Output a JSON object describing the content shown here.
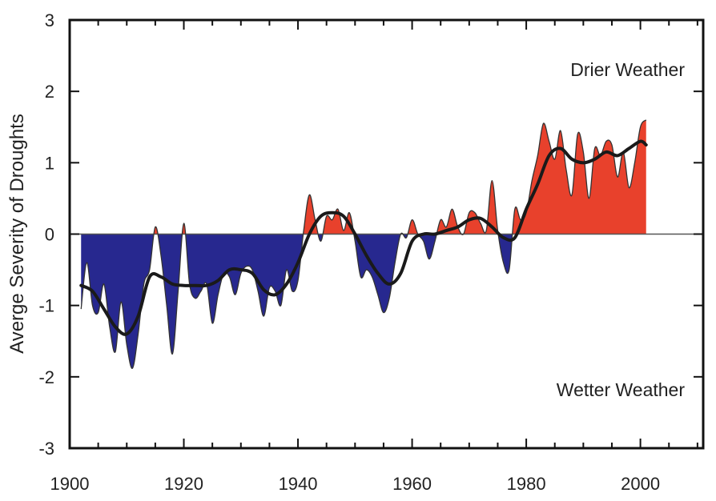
{
  "chart_data": {
    "type": "area",
    "title": "",
    "ylabel": "Averge Severity of Droughts",
    "xlabel": "",
    "xlim": [
      1900,
      2011
    ],
    "ylim": [
      -3,
      3
    ],
    "xticks": [
      1900,
      1920,
      1940,
      1960,
      1980,
      2000
    ],
    "yticks": [
      -3,
      -2,
      -1,
      0,
      1,
      2,
      3
    ],
    "grid": false,
    "annotations": {
      "upper": "Drier Weather",
      "lower": "Wetter Weather"
    },
    "colors": {
      "positive_fill": "#e8412c",
      "negative_fill": "#27288f",
      "smooth_line": "#1a1a1a",
      "axis": "#111111"
    },
    "series": [
      {
        "x": [
          1902,
          1903,
          1904,
          1905,
          1906,
          1907,
          1908,
          1909,
          1910,
          1911,
          1912,
          1913,
          1914,
          1915,
          1916,
          1917,
          1918,
          1919,
          1920,
          1921,
          1922,
          1923,
          1924,
          1925,
          1926,
          1927,
          1928,
          1929,
          1930,
          1931,
          1932,
          1933,
          1934,
          1935,
          1936,
          1937,
          1938,
          1939,
          1940,
          1941,
          1942,
          1943,
          1944,
          1945,
          1946,
          1947,
          1948,
          1949,
          1950,
          1951,
          1952,
          1953,
          1954,
          1955,
          1956,
          1957,
          1958,
          1959,
          1960,
          1961,
          1962,
          1963,
          1964,
          1965,
          1966,
          1967,
          1968,
          1969,
          1970,
          1971,
          1972,
          1973,
          1974,
          1975,
          1976,
          1977,
          1978,
          1979,
          1980,
          1981,
          1982,
          1983,
          1984,
          1985,
          1986,
          1987,
          1988,
          1989,
          1990,
          1991,
          1992,
          1993,
          1994,
          1995,
          1996,
          1997,
          1998,
          1999,
          2000,
          2001
        ],
        "values": [
          -1.05,
          -0.4,
          -1.0,
          -1.1,
          -0.7,
          -1.3,
          -1.65,
          -0.95,
          -1.55,
          -1.88,
          -1.4,
          -0.7,
          -0.5,
          0.1,
          -0.3,
          -1.0,
          -1.68,
          -0.8,
          0.15,
          -0.7,
          -0.9,
          -0.8,
          -0.7,
          -1.25,
          -0.85,
          -0.55,
          -0.6,
          -0.85,
          -0.55,
          -0.45,
          -0.5,
          -0.8,
          -1.15,
          -0.75,
          -0.8,
          -1.0,
          -0.5,
          -0.8,
          -0.65,
          0.05,
          0.55,
          0.2,
          -0.1,
          0.25,
          0.2,
          0.35,
          0.05,
          0.3,
          -0.1,
          -0.6,
          -0.5,
          -0.6,
          -0.85,
          -1.1,
          -0.9,
          -0.4,
          0.0,
          -0.05,
          0.2,
          0.0,
          -0.1,
          -0.35,
          -0.1,
          0.2,
          0.1,
          0.35,
          0.1,
          0.0,
          0.3,
          0.3,
          0.15,
          0.05,
          0.75,
          0.05,
          -0.4,
          -0.5,
          0.35,
          0.2,
          0.3,
          0.75,
          1.1,
          1.55,
          1.3,
          1.05,
          1.45,
          0.9,
          0.55,
          1.4,
          1.15,
          0.5,
          1.2,
          1.1,
          1.3,
          1.25,
          0.8,
          1.15,
          0.65,
          1.0,
          1.5,
          1.6
        ]
      },
      {
        "x": [
          1902,
          1904,
          1906,
          1908,
          1910,
          1912,
          1914,
          1916,
          1918,
          1920,
          1922,
          1924,
          1926,
          1928,
          1930,
          1932,
          1934,
          1936,
          1938,
          1940,
          1942,
          1944,
          1946,
          1948,
          1950,
          1952,
          1954,
          1956,
          1958,
          1960,
          1962,
          1964,
          1966,
          1968,
          1970,
          1972,
          1974,
          1976,
          1978,
          1980,
          1982,
          1984,
          1986,
          1988,
          1990,
          1992,
          1994,
          1996,
          1998,
          2000,
          2001
        ],
        "values": [
          -0.72,
          -0.8,
          -1.05,
          -1.3,
          -1.4,
          -1.15,
          -0.6,
          -0.6,
          -0.7,
          -0.72,
          -0.72,
          -0.72,
          -0.65,
          -0.5,
          -0.5,
          -0.55,
          -0.78,
          -0.85,
          -0.7,
          -0.4,
          0.0,
          0.25,
          0.3,
          0.25,
          0.0,
          -0.3,
          -0.55,
          -0.7,
          -0.55,
          -0.1,
          0.0,
          0.0,
          0.05,
          0.1,
          0.2,
          0.22,
          0.1,
          -0.05,
          -0.05,
          0.35,
          0.7,
          1.1,
          1.2,
          1.05,
          1.0,
          1.05,
          1.15,
          1.1,
          1.2,
          1.3,
          1.25
        ]
      }
    ]
  }
}
